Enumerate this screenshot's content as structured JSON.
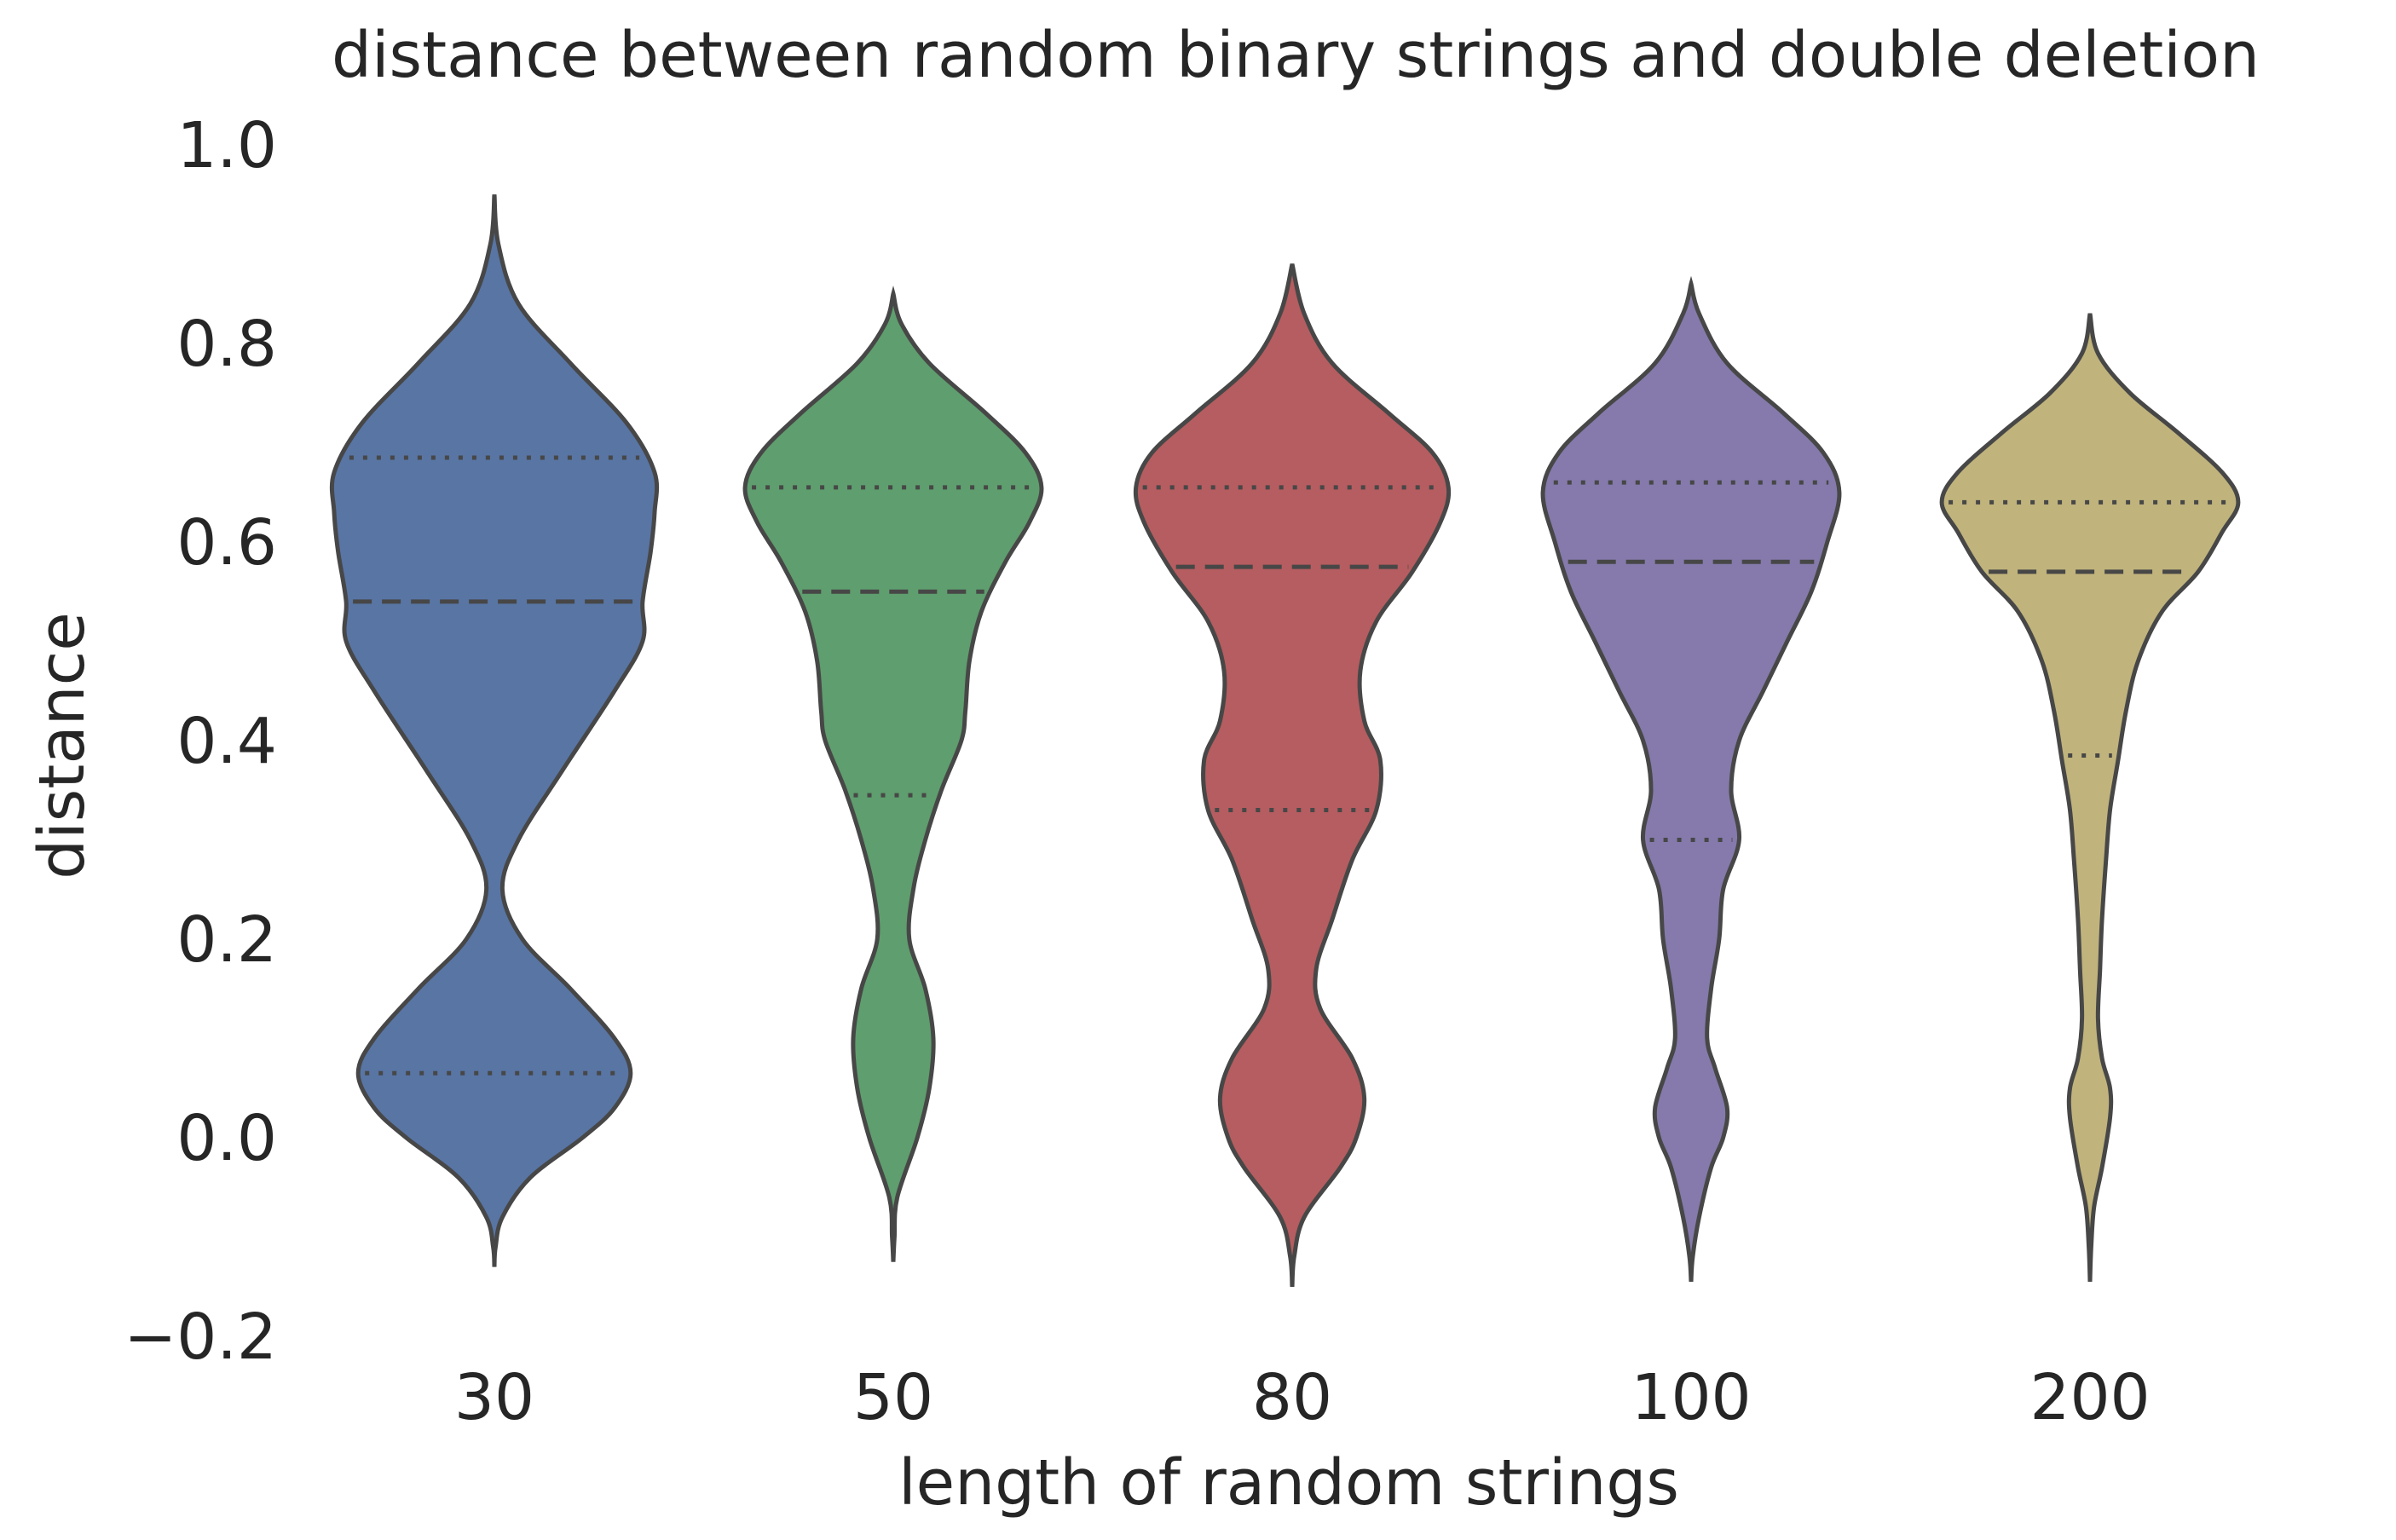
{
  "chart_data": {
    "type": "violin",
    "title": "distance between random binary strings and double deletion",
    "xlabel": "length of random strings",
    "ylabel": "distance",
    "categories": [
      "30",
      "50",
      "80",
      "100",
      "200"
    ],
    "ylim": [
      -0.2,
      1.0
    ],
    "yticks": [
      -0.2,
      0.0,
      0.2,
      0.4,
      0.6,
      0.8,
      1.0
    ],
    "ytick_labels": [
      "−0.2",
      "0.0",
      "0.2",
      "0.4",
      "0.6",
      "0.8",
      "1.0"
    ],
    "grid": false,
    "inner": "quartile",
    "series": [
      {
        "category": "30",
        "color": "#5875a4",
        "q1": 0.065,
        "median": 0.54,
        "q3": 0.685,
        "profile": [
          [
            -0.13,
            0.0
          ],
          [
            -0.11,
            0.003
          ],
          [
            -0.08,
            0.02
          ],
          [
            -0.04,
            0.09
          ],
          [
            0.0,
            0.22
          ],
          [
            0.03,
            0.3
          ],
          [
            0.065,
            0.34
          ],
          [
            0.1,
            0.3
          ],
          [
            0.15,
            0.19
          ],
          [
            0.2,
            0.07
          ],
          [
            0.25,
            0.02
          ],
          [
            0.3,
            0.06
          ],
          [
            0.37,
            0.17
          ],
          [
            0.45,
            0.3
          ],
          [
            0.5,
            0.37
          ],
          [
            0.54,
            0.37
          ],
          [
            0.59,
            0.39
          ],
          [
            0.63,
            0.4
          ],
          [
            0.67,
            0.4
          ],
          [
            0.72,
            0.33
          ],
          [
            0.78,
            0.19
          ],
          [
            0.84,
            0.06
          ],
          [
            0.9,
            0.01
          ],
          [
            0.95,
            0.0
          ]
        ]
      },
      {
        "category": "50",
        "color": "#5f9e6e",
        "q1": 0.345,
        "median": 0.55,
        "q3": 0.655,
        "profile": [
          [
            -0.125,
            0.0
          ],
          [
            -0.1,
            0.003
          ],
          [
            -0.06,
            0.01
          ],
          [
            0.0,
            0.06
          ],
          [
            0.05,
            0.09
          ],
          [
            0.1,
            0.1
          ],
          [
            0.15,
            0.08
          ],
          [
            0.2,
            0.04
          ],
          [
            0.25,
            0.05
          ],
          [
            0.3,
            0.08
          ],
          [
            0.35,
            0.12
          ],
          [
            0.4,
            0.17
          ],
          [
            0.43,
            0.18
          ],
          [
            0.48,
            0.19
          ],
          [
            0.53,
            0.22
          ],
          [
            0.58,
            0.28
          ],
          [
            0.62,
            0.34
          ],
          [
            0.655,
            0.37
          ],
          [
            0.69,
            0.33
          ],
          [
            0.73,
            0.23
          ],
          [
            0.78,
            0.09
          ],
          [
            0.82,
            0.02
          ],
          [
            0.85,
            0.0
          ]
        ]
      },
      {
        "category": "80",
        "color": "#b55d60",
        "q1": 0.33,
        "median": 0.575,
        "q3": 0.655,
        "profile": [
          [
            -0.15,
            0.0
          ],
          [
            -0.12,
            0.005
          ],
          [
            -0.08,
            0.03
          ],
          [
            -0.03,
            0.12
          ],
          [
            0.0,
            0.16
          ],
          [
            0.04,
            0.18
          ],
          [
            0.08,
            0.15
          ],
          [
            0.13,
            0.07
          ],
          [
            0.17,
            0.06
          ],
          [
            0.22,
            0.1
          ],
          [
            0.28,
            0.15
          ],
          [
            0.33,
            0.21
          ],
          [
            0.38,
            0.22
          ],
          [
            0.42,
            0.18
          ],
          [
            0.47,
            0.17
          ],
          [
            0.52,
            0.21
          ],
          [
            0.57,
            0.3
          ],
          [
            0.62,
            0.37
          ],
          [
            0.655,
            0.39
          ],
          [
            0.69,
            0.35
          ],
          [
            0.73,
            0.24
          ],
          [
            0.78,
            0.1
          ],
          [
            0.83,
            0.03
          ],
          [
            0.88,
            0.0
          ]
        ]
      },
      {
        "category": "100",
        "color": "#857aab",
        "q1": 0.3,
        "median": 0.58,
        "q3": 0.66,
        "profile": [
          [
            -0.145,
            0.0
          ],
          [
            -0.12,
            0.004
          ],
          [
            -0.08,
            0.02
          ],
          [
            -0.03,
            0.05
          ],
          [
            0.0,
            0.08
          ],
          [
            0.03,
            0.09
          ],
          [
            0.07,
            0.06
          ],
          [
            0.1,
            0.04
          ],
          [
            0.15,
            0.05
          ],
          [
            0.2,
            0.07
          ],
          [
            0.25,
            0.08
          ],
          [
            0.3,
            0.12
          ],
          [
            0.35,
            0.1
          ],
          [
            0.4,
            0.12
          ],
          [
            0.45,
            0.18
          ],
          [
            0.5,
            0.24
          ],
          [
            0.55,
            0.3
          ],
          [
            0.6,
            0.34
          ],
          [
            0.65,
            0.37
          ],
          [
            0.69,
            0.33
          ],
          [
            0.73,
            0.23
          ],
          [
            0.78,
            0.09
          ],
          [
            0.83,
            0.02
          ],
          [
            0.86,
            0.0
          ]
        ]
      },
      {
        "category": "200",
        "color": "#c0b37c",
        "q1": 0.385,
        "median": 0.57,
        "q3": 0.64,
        "profile": [
          [
            -0.145,
            0.0
          ],
          [
            -0.11,
            0.003
          ],
          [
            -0.07,
            0.01
          ],
          [
            -0.03,
            0.03
          ],
          [
            0.02,
            0.05
          ],
          [
            0.05,
            0.05
          ],
          [
            0.08,
            0.03
          ],
          [
            0.12,
            0.02
          ],
          [
            0.17,
            0.025
          ],
          [
            0.22,
            0.03
          ],
          [
            0.28,
            0.04
          ],
          [
            0.33,
            0.05
          ],
          [
            0.38,
            0.07
          ],
          [
            0.43,
            0.09
          ],
          [
            0.48,
            0.12
          ],
          [
            0.53,
            0.18
          ],
          [
            0.57,
            0.27
          ],
          [
            0.61,
            0.33
          ],
          [
            0.64,
            0.37
          ],
          [
            0.67,
            0.33
          ],
          [
            0.71,
            0.22
          ],
          [
            0.75,
            0.1
          ],
          [
            0.79,
            0.02
          ],
          [
            0.83,
            0.0
          ]
        ]
      }
    ]
  }
}
